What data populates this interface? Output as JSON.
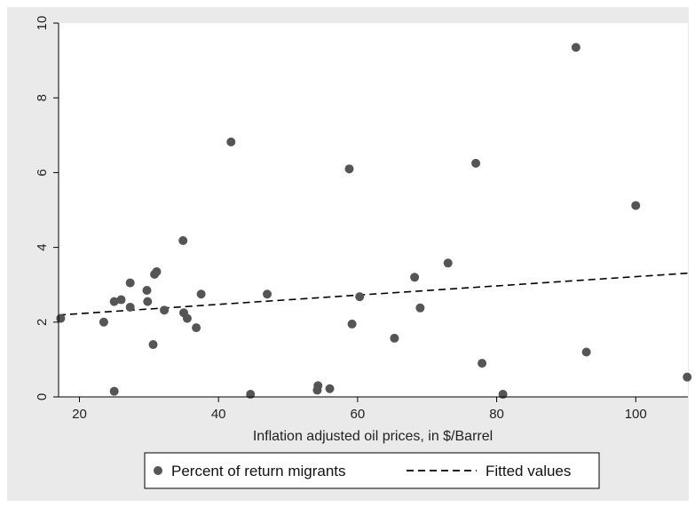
{
  "chart_data": {
    "type": "scatter",
    "xlabel": "Inflation adjusted oil prices, in $/Barrel",
    "ylabel": "",
    "xlim": [
      17,
      107.5
    ],
    "ylim": [
      0,
      10
    ],
    "xticks": [
      20,
      40,
      60,
      80,
      100
    ],
    "yticks": [
      0,
      2,
      4,
      6,
      8,
      10
    ],
    "grid": false,
    "legend_position": "bottom",
    "series": [
      {
        "name": "Percent of return migrants",
        "kind": "scatter",
        "color": "#555555",
        "points": [
          [
            17.3,
            2.1
          ],
          [
            23.5,
            2.0
          ],
          [
            25.0,
            2.55
          ],
          [
            25.0,
            0.15
          ],
          [
            26.0,
            2.6
          ],
          [
            27.3,
            2.4
          ],
          [
            27.3,
            3.05
          ],
          [
            29.7,
            2.85
          ],
          [
            29.8,
            2.55
          ],
          [
            30.6,
            1.4
          ],
          [
            30.8,
            3.28
          ],
          [
            31.1,
            3.35
          ],
          [
            32.2,
            2.32
          ],
          [
            34.9,
            4.18
          ],
          [
            35.0,
            2.25
          ],
          [
            35.5,
            2.1
          ],
          [
            36.8,
            1.85
          ],
          [
            37.5,
            2.75
          ],
          [
            41.8,
            6.82
          ],
          [
            44.6,
            0.07
          ],
          [
            47.0,
            2.75
          ],
          [
            54.2,
            0.18
          ],
          [
            54.3,
            0.3
          ],
          [
            56.0,
            0.22
          ],
          [
            58.8,
            6.1
          ],
          [
            59.2,
            1.95
          ],
          [
            60.3,
            2.68
          ],
          [
            65.3,
            1.57
          ],
          [
            68.2,
            3.2
          ],
          [
            69.0,
            2.38
          ],
          [
            73.0,
            3.58
          ],
          [
            77.0,
            6.25
          ],
          [
            77.9,
            0.9
          ],
          [
            80.9,
            0.07
          ],
          [
            91.4,
            9.35
          ],
          [
            92.9,
            1.2
          ],
          [
            100.0,
            5.12
          ],
          [
            107.4,
            0.53
          ]
        ]
      },
      {
        "name": "Fitted values",
        "kind": "line",
        "style": "dashed",
        "color": "#000000",
        "points": [
          [
            17.0,
            2.19
          ],
          [
            107.5,
            3.31
          ]
        ]
      }
    ]
  }
}
